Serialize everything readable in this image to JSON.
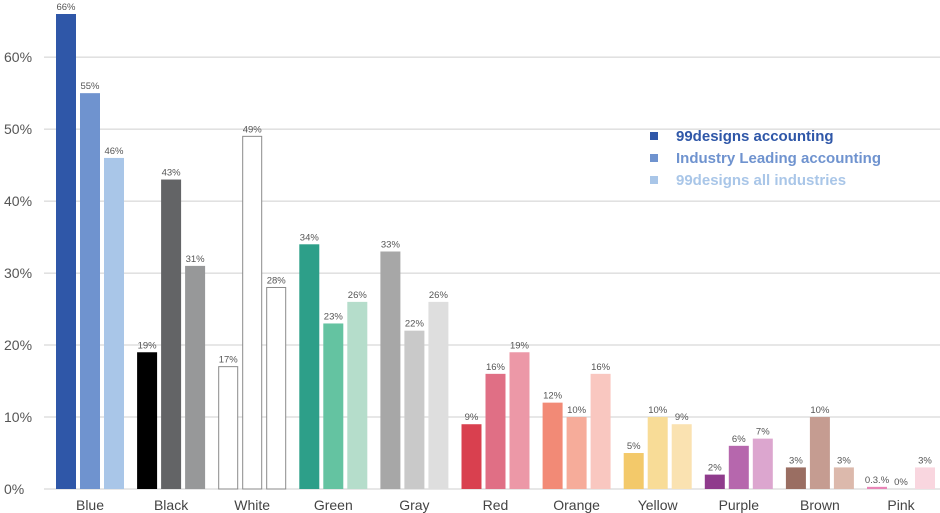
{
  "chart_data": {
    "type": "bar",
    "ylim": [
      0,
      66
    ],
    "grid": true,
    "legend_position": "top-right",
    "y_ticks": [
      "0%",
      "10%",
      "20%",
      "30%",
      "40%",
      "50%",
      "60%"
    ],
    "y_tick_values": [
      0,
      10,
      20,
      30,
      40,
      50,
      60
    ],
    "series": [
      {
        "name": "99designs accounting",
        "color": "#2f57a8"
      },
      {
        "name": "Industry Leading accounting",
        "color": "#6f93cf"
      },
      {
        "name": "99designs all industries",
        "color": "#a9c6e8"
      }
    ],
    "categories": [
      {
        "label": "Blue",
        "values": [
          66,
          55,
          46
        ],
        "labels": [
          "66%",
          "55%",
          "46%"
        ],
        "colors": [
          "#2f57a8",
          "#6f93cf",
          "#a9c6e8"
        ],
        "outlined": [
          false,
          false,
          false
        ]
      },
      {
        "label": "Black",
        "values": [
          19,
          43,
          31
        ],
        "labels": [
          "19%",
          "43%",
          "31%"
        ],
        "colors": [
          "#000000",
          "#636466",
          "#979899"
        ],
        "outlined": [
          false,
          false,
          false
        ]
      },
      {
        "label": "White",
        "values": [
          17,
          49,
          28
        ],
        "labels": [
          "17%",
          "49%",
          "28%"
        ],
        "colors": [
          "#ffffff",
          "#ffffff",
          "#ffffff"
        ],
        "outlined": [
          true,
          true,
          true
        ]
      },
      {
        "label": "Green",
        "values": [
          34,
          23,
          26
        ],
        "labels": [
          "34%",
          "23%",
          "26%"
        ],
        "colors": [
          "#2d9f89",
          "#64c3a1",
          "#b5ddcb"
        ],
        "outlined": [
          false,
          false,
          false
        ]
      },
      {
        "label": "Gray",
        "values": [
          33,
          22,
          26
        ],
        "labels": [
          "33%",
          "22%",
          "26%"
        ],
        "colors": [
          "#a7a7a7",
          "#c9c9c9",
          "#dedede"
        ],
        "outlined": [
          false,
          false,
          false
        ]
      },
      {
        "label": "Red",
        "values": [
          9,
          16,
          19
        ],
        "labels": [
          "9%",
          "16%",
          "19%"
        ],
        "colors": [
          "#d9404f",
          "#e06f85",
          "#ec98a7"
        ],
        "outlined": [
          false,
          false,
          false
        ]
      },
      {
        "label": "Orange",
        "values": [
          12,
          10,
          16
        ],
        "labels": [
          "12%",
          "10%",
          "16%"
        ],
        "colors": [
          "#f28a76",
          "#f6ac9a",
          "#f9c7c0"
        ],
        "outlined": [
          false,
          false,
          false
        ]
      },
      {
        "label": "Yellow",
        "values": [
          5,
          10,
          9
        ],
        "labels": [
          "5%",
          "10%",
          "9%"
        ],
        "colors": [
          "#f3c96a",
          "#f8dc97",
          "#fae2b1"
        ],
        "outlined": [
          false,
          false,
          false
        ]
      },
      {
        "label": "Purple",
        "values": [
          2,
          6,
          7
        ],
        "labels": [
          "2%",
          "6%",
          "7%"
        ],
        "colors": [
          "#8f3b8c",
          "#b667ad",
          "#dca6cf"
        ],
        "outlined": [
          false,
          false,
          false
        ]
      },
      {
        "label": "Brown",
        "values": [
          3,
          10,
          3
        ],
        "labels": [
          "3%",
          "10%",
          "3%"
        ],
        "colors": [
          "#9a6e62",
          "#c59c91",
          "#dcb9ac"
        ],
        "outlined": [
          false,
          false,
          false
        ]
      },
      {
        "label": "Pink",
        "values": [
          0.3,
          0,
          3
        ],
        "labels": [
          "0.3.%",
          "0%",
          "3%"
        ],
        "colors": [
          "#e986b7",
          "#f5c6da",
          "#f9d6df"
        ],
        "outlined": [
          false,
          false,
          false
        ]
      }
    ]
  }
}
